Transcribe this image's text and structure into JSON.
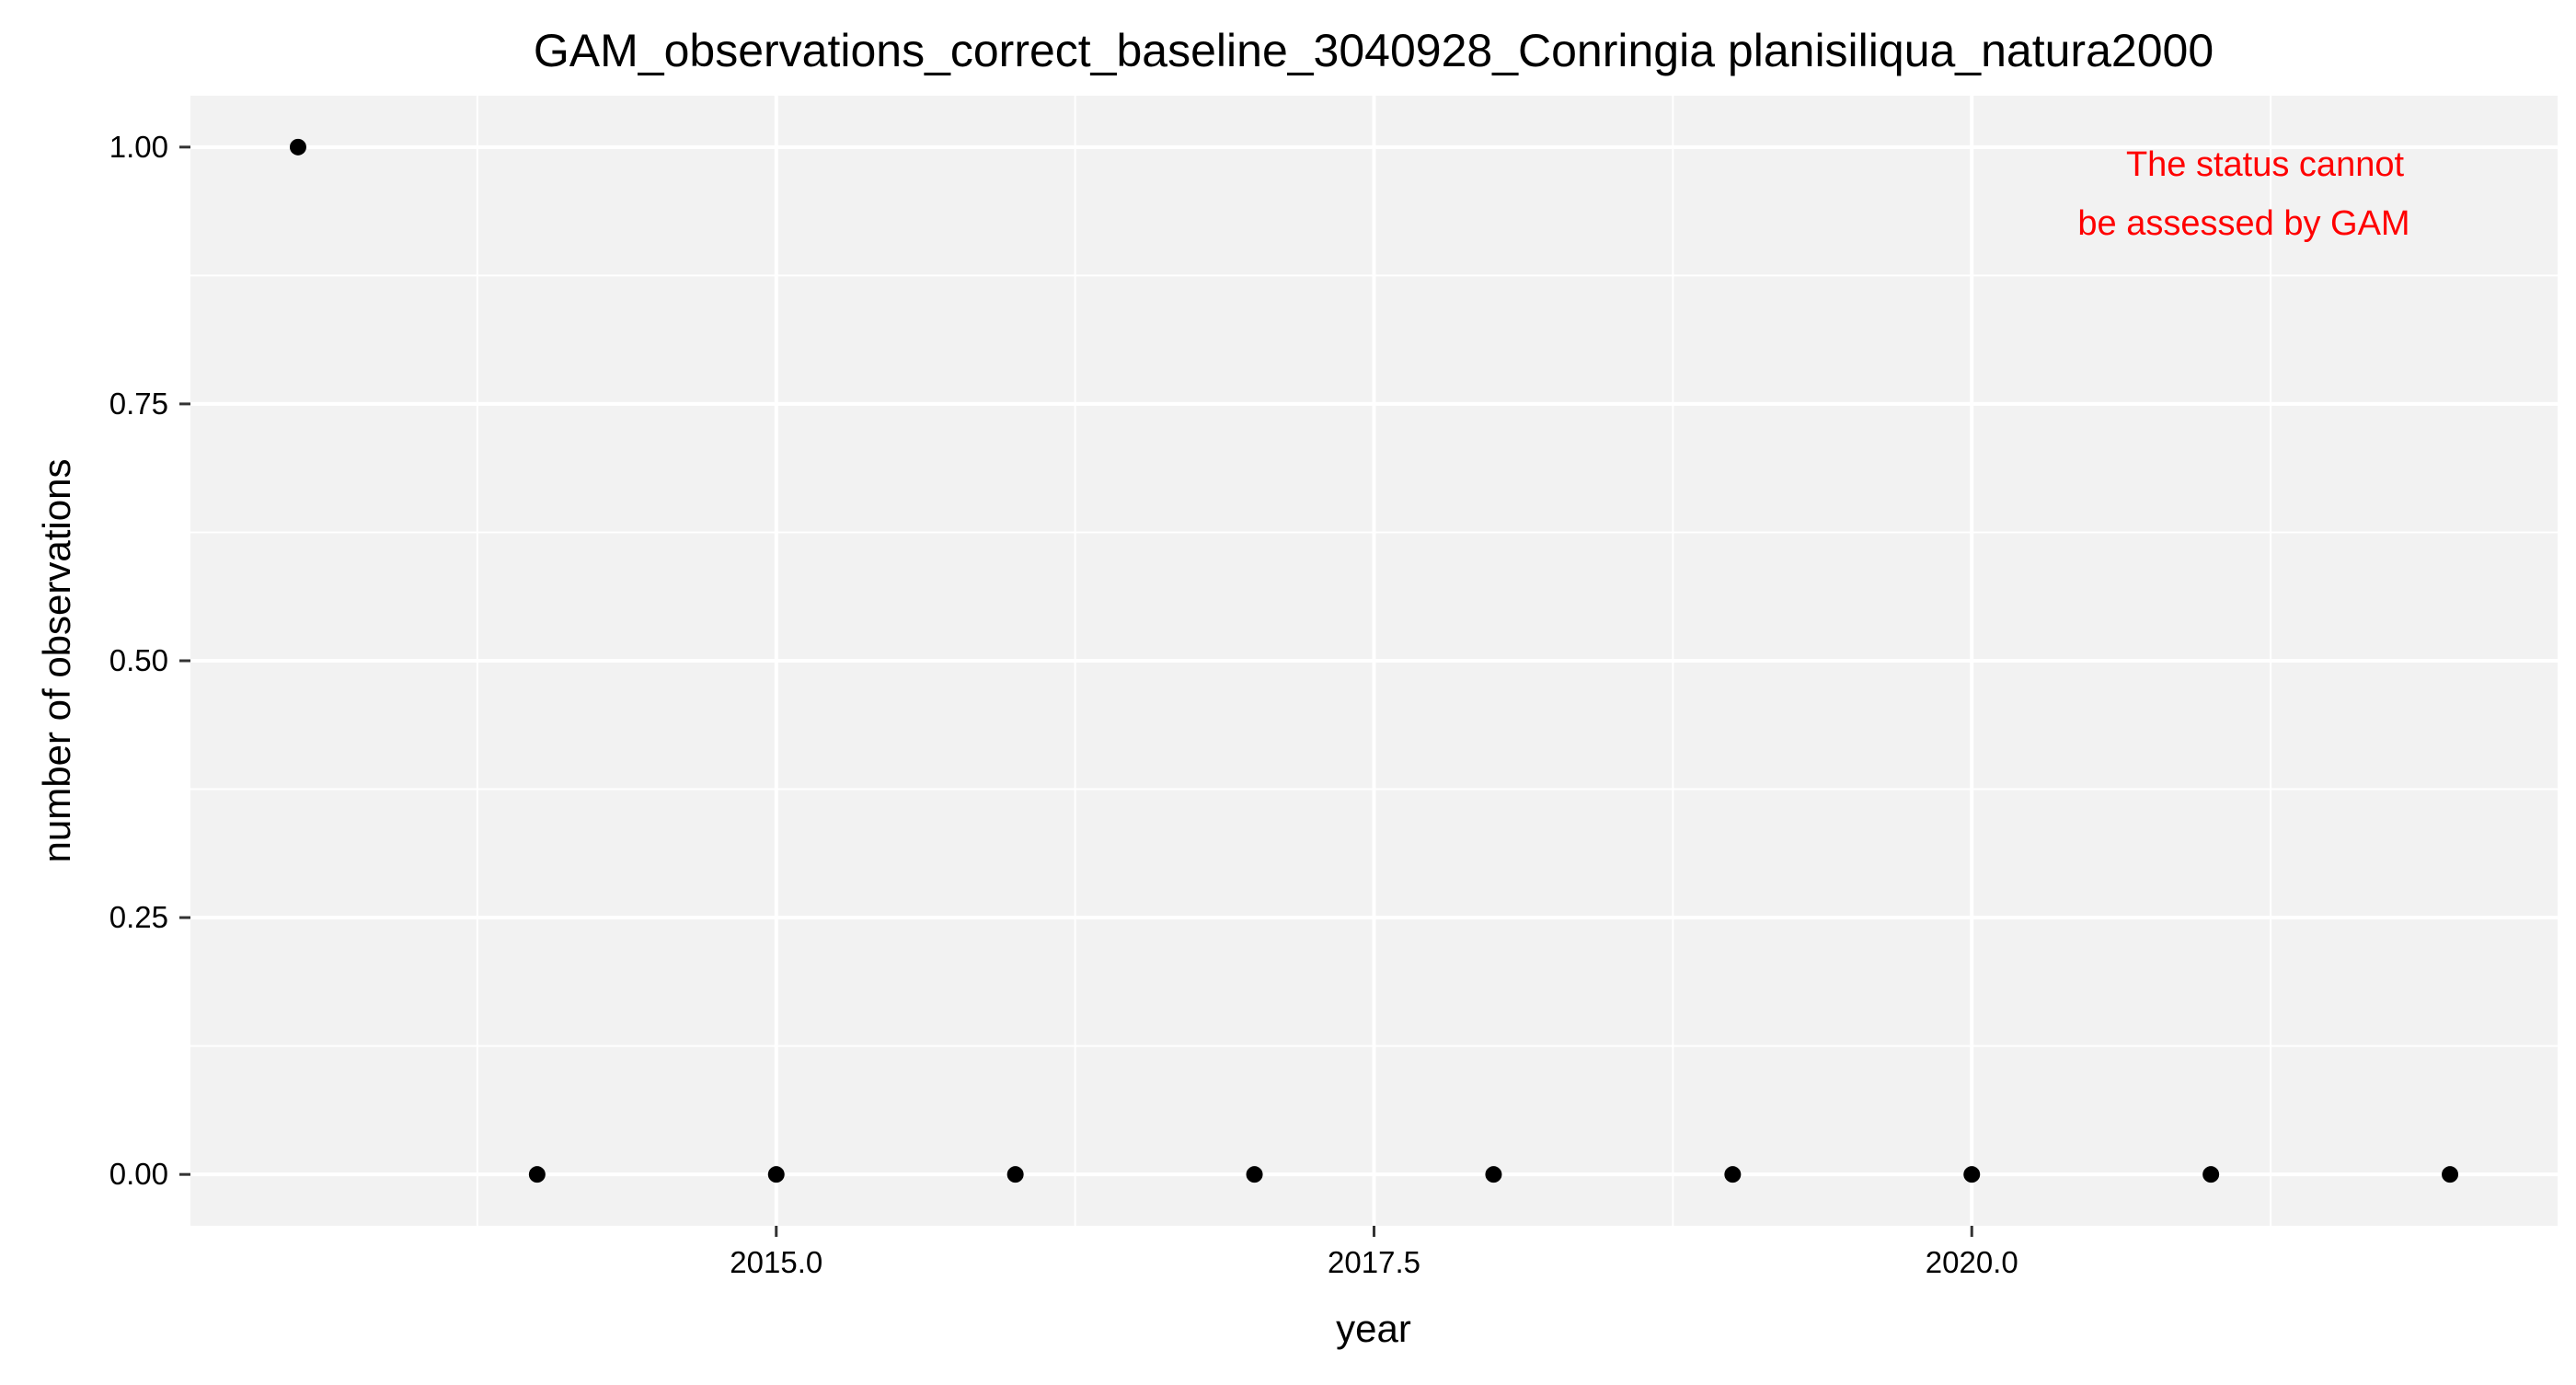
{
  "chart_data": {
    "type": "scatter",
    "title": "GAM_observations_correct_baseline_3040928_Conringia planisiliqua_natura2000",
    "xlabel": "year",
    "ylabel": "number of observations",
    "annotation": [
      "The status cannot",
      "be assessed by GAM"
    ],
    "series": [
      {
        "x": [
          2013,
          2014,
          2015,
          2016,
          2017,
          2018,
          2019,
          2020,
          2021,
          2022
        ],
        "y": [
          1,
          0,
          0,
          0,
          0,
          0,
          0,
          0,
          0,
          0
        ]
      }
    ],
    "xlim": [
      2012.55,
      2022.45
    ],
    "ylim": [
      -0.05,
      1.05
    ],
    "x_ticks": [
      2015.0,
      2017.5,
      2020.0
    ],
    "x_tick_labels": [
      "2015.0",
      "2017.5",
      "2020.0"
    ],
    "y_ticks": [
      0,
      0.25,
      0.5,
      0.75,
      1.0
    ],
    "y_tick_labels": [
      "0.00",
      "0.25",
      "0.50",
      "0.75",
      "1.00"
    ],
    "grid": true,
    "colors": {
      "panel": "#f2f2f2",
      "grid": "#ffffff",
      "point": "#000000",
      "annotation": "#ff0000",
      "text": "#000000"
    }
  }
}
